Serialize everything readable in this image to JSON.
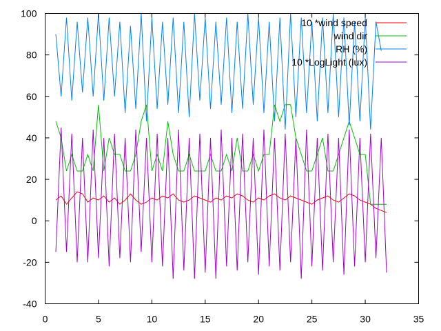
{
  "chart_data": {
    "type": "line",
    "title": "",
    "xlabel": "",
    "ylabel": "",
    "xlim": [
      0,
      35
    ],
    "ylim": [
      -40,
      100
    ],
    "x_ticks": [
      0,
      5,
      10,
      15,
      20,
      25,
      30,
      35
    ],
    "y_ticks": [
      -40,
      -20,
      0,
      20,
      40,
      60,
      80,
      100
    ],
    "legend_position": "top-right",
    "grid": false,
    "series": [
      {
        "name": "10 *wind speed",
        "color": "#ff0000",
        "points": [
          [
            1.0,
            10
          ],
          [
            1.5,
            12
          ],
          [
            2.0,
            8
          ],
          [
            2.5,
            11
          ],
          [
            3.0,
            14
          ],
          [
            3.5,
            13
          ],
          [
            4.0,
            9
          ],
          [
            4.5,
            11
          ],
          [
            5.0,
            10
          ],
          [
            5.5,
            12
          ],
          [
            6.0,
            9
          ],
          [
            6.5,
            11
          ],
          [
            7.0,
            8
          ],
          [
            7.5,
            10
          ],
          [
            8.0,
            13
          ],
          [
            8.5,
            10
          ],
          [
            9.0,
            8
          ],
          [
            9.5,
            9
          ],
          [
            10.0,
            11
          ],
          [
            10.5,
            10
          ],
          [
            11.0,
            12
          ],
          [
            11.5,
            11
          ],
          [
            12.0,
            13
          ],
          [
            12.5,
            10
          ],
          [
            13.0,
            9
          ],
          [
            13.5,
            10
          ],
          [
            14.0,
            12
          ],
          [
            14.5,
            11
          ],
          [
            15.0,
            10
          ],
          [
            15.5,
            9
          ],
          [
            16.0,
            11
          ],
          [
            16.5,
            10
          ],
          [
            17.0,
            12
          ],
          [
            17.5,
            11
          ],
          [
            18.0,
            13
          ],
          [
            18.5,
            12
          ],
          [
            19.0,
            10
          ],
          [
            19.5,
            9
          ],
          [
            20.0,
            11
          ],
          [
            20.5,
            10
          ],
          [
            21.0,
            12
          ],
          [
            21.5,
            13
          ],
          [
            22.0,
            11
          ],
          [
            22.5,
            10
          ],
          [
            23.0,
            12
          ],
          [
            23.5,
            11
          ],
          [
            24.0,
            10
          ],
          [
            24.5,
            9
          ],
          [
            25.0,
            8
          ],
          [
            25.5,
            10
          ],
          [
            26.0,
            11
          ],
          [
            26.5,
            12
          ],
          [
            27.0,
            10
          ],
          [
            27.5,
            9
          ],
          [
            28.0,
            11
          ],
          [
            28.5,
            13
          ],
          [
            29.0,
            12
          ],
          [
            29.5,
            10
          ],
          [
            30.0,
            9
          ],
          [
            30.5,
            8
          ],
          [
            31.0,
            6
          ],
          [
            31.5,
            5
          ],
          [
            32.0,
            4
          ]
        ]
      },
      {
        "name": "wind dir",
        "color": "#00c000",
        "points": [
          [
            1.0,
            48
          ],
          [
            1.5,
            40
          ],
          [
            2.0,
            24
          ],
          [
            2.5,
            32
          ],
          [
            3.0,
            24
          ],
          [
            3.5,
            24
          ],
          [
            4.0,
            32
          ],
          [
            4.5,
            24
          ],
          [
            5.0,
            56
          ],
          [
            5.5,
            24
          ],
          [
            6.0,
            40
          ],
          [
            6.5,
            32
          ],
          [
            7.0,
            32
          ],
          [
            7.5,
            24
          ],
          [
            8.0,
            24
          ],
          [
            8.5,
            32
          ],
          [
            9.0,
            48
          ],
          [
            9.5,
            56
          ],
          [
            10.0,
            24
          ],
          [
            10.5,
            32
          ],
          [
            11.0,
            24
          ],
          [
            11.5,
            48
          ],
          [
            12.0,
            32
          ],
          [
            12.5,
            24
          ],
          [
            13.0,
            24
          ],
          [
            13.5,
            32
          ],
          [
            14.0,
            24
          ],
          [
            14.5,
            24
          ],
          [
            15.0,
            24
          ],
          [
            15.5,
            32
          ],
          [
            16.0,
            24
          ],
          [
            16.5,
            24
          ],
          [
            17.0,
            32
          ],
          [
            17.5,
            24
          ],
          [
            18.0,
            40
          ],
          [
            18.5,
            24
          ],
          [
            19.0,
            24
          ],
          [
            19.5,
            32
          ],
          [
            20.0,
            24
          ],
          [
            20.5,
            32
          ],
          [
            21.0,
            32
          ],
          [
            21.5,
            56
          ],
          [
            22.0,
            48
          ],
          [
            22.5,
            56
          ],
          [
            23.0,
            56
          ],
          [
            23.5,
            40
          ],
          [
            24.0,
            32
          ],
          [
            24.5,
            24
          ],
          [
            25.0,
            24
          ],
          [
            25.5,
            32
          ],
          [
            26.0,
            40
          ],
          [
            26.5,
            24
          ],
          [
            27.0,
            24
          ],
          [
            27.5,
            32
          ],
          [
            28.0,
            40
          ],
          [
            28.5,
            48
          ],
          [
            29.0,
            40
          ],
          [
            29.5,
            32
          ],
          [
            30.0,
            32
          ],
          [
            30.5,
            8
          ],
          [
            31.0,
            8
          ],
          [
            31.5,
            8
          ],
          [
            32.0,
            8
          ]
        ]
      },
      {
        "name": "RH (%)",
        "color": "#0080ff",
        "points": [
          [
            1.0,
            90
          ],
          [
            1.5,
            60
          ],
          [
            2.0,
            98
          ],
          [
            2.5,
            58
          ],
          [
            3.0,
            96
          ],
          [
            3.5,
            62
          ],
          [
            4.0,
            98
          ],
          [
            4.5,
            60
          ],
          [
            5.0,
            100
          ],
          [
            5.5,
            58
          ],
          [
            6.0,
            98
          ],
          [
            6.5,
            60
          ],
          [
            7.0,
            96
          ],
          [
            7.5,
            52
          ],
          [
            8.0,
            94
          ],
          [
            8.5,
            54
          ],
          [
            9.0,
            100
          ],
          [
            9.5,
            48
          ],
          [
            10.0,
            98
          ],
          [
            10.5,
            54
          ],
          [
            11.0,
            96
          ],
          [
            11.5,
            56
          ],
          [
            12.0,
            98
          ],
          [
            12.5,
            52
          ],
          [
            13.0,
            96
          ],
          [
            13.5,
            50
          ],
          [
            14.0,
            100
          ],
          [
            14.5,
            58
          ],
          [
            15.0,
            98
          ],
          [
            15.5,
            54
          ],
          [
            16.0,
            96
          ],
          [
            16.5,
            56
          ],
          [
            17.0,
            98
          ],
          [
            17.5,
            52
          ],
          [
            18.0,
            96
          ],
          [
            18.5,
            54
          ],
          [
            19.0,
            100
          ],
          [
            19.5,
            56
          ],
          [
            20.0,
            98
          ],
          [
            20.5,
            52
          ],
          [
            21.0,
            96
          ],
          [
            21.5,
            48
          ],
          [
            22.0,
            98
          ],
          [
            22.5,
            44
          ],
          [
            23.0,
            100
          ],
          [
            23.5,
            50
          ],
          [
            24.0,
            98
          ],
          [
            24.5,
            52
          ],
          [
            25.0,
            96
          ],
          [
            25.5,
            48
          ],
          [
            26.0,
            98
          ],
          [
            26.5,
            52
          ],
          [
            27.0,
            100
          ],
          [
            27.5,
            50
          ],
          [
            28.0,
            98
          ],
          [
            28.5,
            46
          ],
          [
            29.0,
            96
          ],
          [
            29.5,
            48
          ],
          [
            30.0,
            98
          ],
          [
            30.5,
            44
          ],
          [
            31.0,
            96
          ],
          [
            31.5,
            82
          ]
        ]
      },
      {
        "name": "10 *LogLight (lux)",
        "color": "#a000d0",
        "points": [
          [
            1.0,
            -15
          ],
          [
            1.5,
            45
          ],
          [
            2.0,
            -15
          ],
          [
            2.5,
            42
          ],
          [
            3.0,
            -20
          ],
          [
            3.5,
            40
          ],
          [
            4.0,
            -20
          ],
          [
            4.5,
            44
          ],
          [
            5.0,
            -18
          ],
          [
            5.5,
            40
          ],
          [
            6.0,
            -22
          ],
          [
            6.5,
            42
          ],
          [
            7.0,
            -18
          ],
          [
            7.5,
            40
          ],
          [
            8.0,
            -20
          ],
          [
            8.5,
            44
          ],
          [
            9.0,
            -15
          ],
          [
            9.5,
            40
          ],
          [
            10.0,
            -20
          ],
          [
            10.5,
            42
          ],
          [
            11.0,
            -22
          ],
          [
            11.5,
            40
          ],
          [
            12.0,
            -28
          ],
          [
            12.5,
            44
          ],
          [
            13.0,
            -24
          ],
          [
            13.5,
            40
          ],
          [
            14.0,
            -28
          ],
          [
            14.5,
            42
          ],
          [
            15.0,
            -25
          ],
          [
            15.5,
            40
          ],
          [
            16.0,
            -28
          ],
          [
            16.5,
            44
          ],
          [
            17.0,
            -22
          ],
          [
            17.5,
            40
          ],
          [
            18.0,
            -24
          ],
          [
            18.5,
            42
          ],
          [
            19.0,
            -20
          ],
          [
            19.5,
            40
          ],
          [
            20.0,
            -26
          ],
          [
            20.5,
            44
          ],
          [
            21.0,
            -22
          ],
          [
            21.5,
            40
          ],
          [
            22.0,
            -24
          ],
          [
            22.5,
            42
          ],
          [
            23.0,
            -20
          ],
          [
            23.5,
            40
          ],
          [
            24.0,
            -28
          ],
          [
            24.5,
            44
          ],
          [
            25.0,
            -22
          ],
          [
            25.5,
            40
          ],
          [
            26.0,
            -24
          ],
          [
            26.5,
            42
          ],
          [
            27.0,
            -20
          ],
          [
            27.5,
            40
          ],
          [
            28.0,
            -26
          ],
          [
            28.5,
            44
          ],
          [
            29.0,
            -22
          ],
          [
            29.5,
            40
          ],
          [
            30.0,
            -20
          ],
          [
            30.5,
            42
          ],
          [
            31.0,
            -18
          ],
          [
            31.5,
            40
          ],
          [
            32.0,
            -25
          ]
        ]
      }
    ]
  }
}
